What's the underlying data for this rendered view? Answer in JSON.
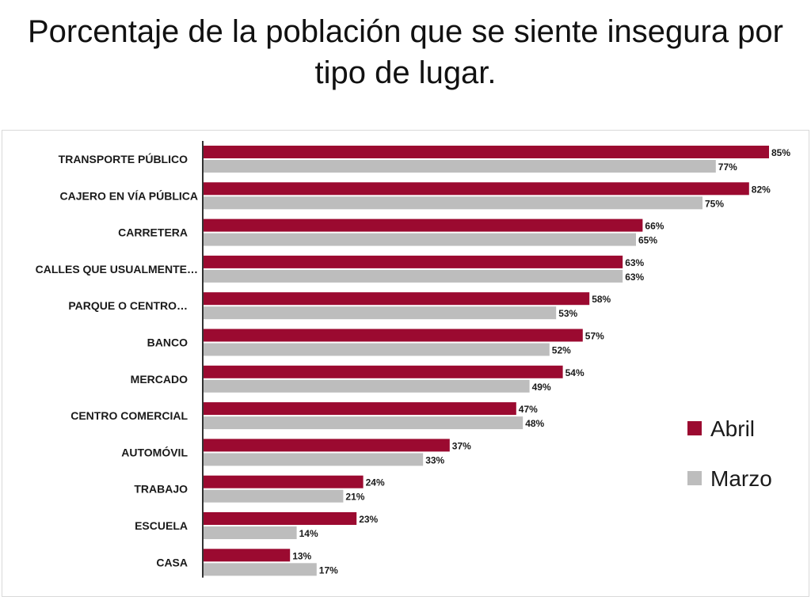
{
  "page": {
    "title": "Porcentaje de la población que se siente insegura por tipo de lugar."
  },
  "colors": {
    "abril": "#9b0a30",
    "marzo": "#bdbdbd",
    "axis": "#333333"
  },
  "chart_data": {
    "type": "bar",
    "orientation": "horizontal",
    "title": "Porcentaje de la población que se siente insegura por tipo de lugar.",
    "categories": [
      "TRANSPORTE PÚBLICO",
      "CAJERO EN VÍA PÚBLICA",
      "CARRETERA",
      "CALLES QUE USUALMENTE…",
      "PARQUE O CENTRO…",
      "BANCO",
      "MERCADO",
      "CENTRO COMERCIAL",
      "AUTOMÓVIL",
      "TRABAJO",
      "ESCUELA",
      "CASA"
    ],
    "series": [
      {
        "name": "Abril",
        "values": [
          85,
          82,
          66,
          63,
          58,
          57,
          54,
          47,
          37,
          24,
          23,
          13
        ]
      },
      {
        "name": "Marzo",
        "values": [
          77,
          75,
          65,
          63,
          53,
          52,
          49,
          48,
          33,
          21,
          14,
          17
        ]
      }
    ],
    "value_labels": {
      "Abril": [
        "85%",
        "82%",
        "66%",
        "63%",
        "58%",
        "57%",
        "54%",
        "47%",
        "37%",
        "24%",
        "23%",
        "13%"
      ],
      "Marzo": [
        "77%",
        "75%",
        "65%",
        "63%",
        "53%",
        "52%",
        "49%",
        "48%",
        "33%",
        "21%",
        "14%",
        "17%"
      ]
    },
    "xlim": [
      0,
      100
    ],
    "grid": false,
    "legend_position": "right"
  }
}
